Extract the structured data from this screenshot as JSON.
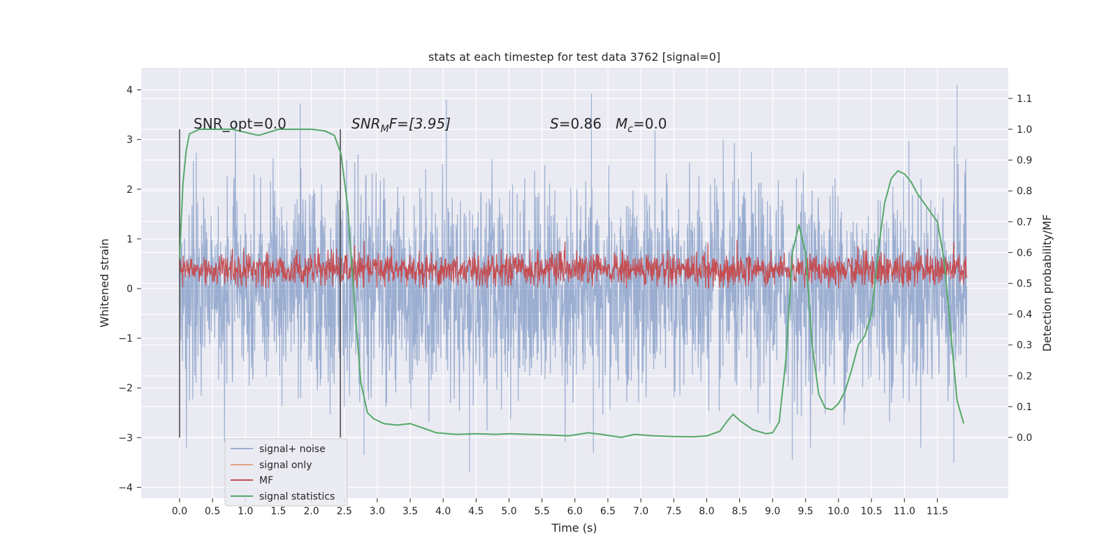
{
  "chart_data": {
    "type": "line",
    "title": "stats at each timestep for test data 3762 [signal=0]",
    "xlabel": "Time (s)",
    "ylabel": "Whitened strain",
    "ylabel_right": "Detection probability/MF",
    "xlim": [
      -0.6,
      12.55
    ],
    "ylim": [
      -4.25,
      4.4
    ],
    "ylim_right": [
      -0.2,
      1.18
    ],
    "x_ticks": [
      "0.0",
      "0.5",
      "1.0",
      "1.5",
      "2.0",
      "2.5",
      "3.0",
      "3.5",
      "4.0",
      "4.5",
      "5.0",
      "5.5",
      "6.0",
      "6.5",
      "7.0",
      "7.5",
      "8.0",
      "8.5",
      "9.0",
      "9.5",
      "10.0",
      "10.5",
      "11.0",
      "11.5"
    ],
    "y_ticks": [
      "4",
      "3",
      "2",
      "1",
      "0",
      "−1",
      "−2",
      "−3",
      "−4"
    ],
    "y_ticks_right": [
      "1.1",
      "1.0",
      "0.9",
      "0.8",
      "0.7",
      "0.6",
      "0.5",
      "0.4",
      "0.3",
      "0.2",
      "0.1",
      "0.0"
    ],
    "grid": true,
    "legend_placement": "lower-left",
    "colors": {
      "signal_noise": "#4c72b0",
      "signal_only": "#dd8452",
      "mf": "#c44e52",
      "signal_statistics": "#55a868",
      "background": "#eaeaf2"
    },
    "annotations": {
      "snr_opt": "SNR_opt=0.0",
      "snr_mf_prefix": "SNR",
      "snr_mf_sub": "M",
      "snr_mf_suffix": "F=[3.95]",
      "s_label": "S",
      "s_value": "=0.86",
      "mc_label": "M",
      "mc_sub": "c",
      "mc_value": "=0.0"
    },
    "vertical_lines_x": [
      0.0,
      2.44
    ],
    "series": [
      {
        "name": "signal+ noise",
        "description_range": [
          -3.7,
          4.1
        ],
        "x_start": 0.0,
        "x_end": 11.95,
        "outliers": [
          [
            1.83,
            3.72
          ],
          [
            4.05,
            3.8
          ],
          [
            6.25,
            3.92
          ],
          [
            11.8,
            4.1
          ],
          [
            4.4,
            -3.68
          ],
          [
            9.3,
            -3.45
          ],
          [
            11.75,
            -3.5
          ],
          [
            2.8,
            -3.35
          ],
          [
            6.28,
            -3.3
          ]
        ]
      },
      {
        "name": "signal only",
        "values": []
      },
      {
        "name": "MF",
        "x_start": 0.0,
        "x_end": 11.95,
        "range": [
          0.0,
          0.98
        ]
      },
      {
        "name": "signal statistics",
        "axis": "right",
        "x": [
          0.0,
          0.05,
          0.1,
          0.15,
          0.3,
          0.5,
          0.8,
          1.0,
          1.2,
          1.35,
          1.5,
          1.8,
          2.0,
          2.2,
          2.35,
          2.45,
          2.55,
          2.65,
          2.75,
          2.85,
          2.95,
          3.1,
          3.3,
          3.5,
          3.7,
          3.9,
          4.2,
          4.5,
          4.8,
          5.0,
          5.3,
          5.6,
          5.9,
          6.2,
          6.4,
          6.7,
          6.9,
          7.2,
          7.5,
          7.8,
          8.0,
          8.2,
          8.3,
          8.4,
          8.5,
          8.7,
          8.9,
          9.0,
          9.1,
          9.2,
          9.3,
          9.4,
          9.5,
          9.6,
          9.7,
          9.8,
          9.9,
          10.0,
          10.1,
          10.2,
          10.3,
          10.4,
          10.5,
          10.6,
          10.7,
          10.8,
          10.9,
          11.0,
          11.1,
          11.2,
          11.3,
          11.4,
          11.5,
          11.6,
          11.7,
          11.8,
          11.9
        ],
        "values": [
          0.58,
          0.82,
          0.93,
          0.985,
          1.0,
          1.0,
          1.0,
          0.99,
          0.98,
          0.99,
          1.0,
          1.0,
          1.0,
          0.995,
          0.98,
          0.92,
          0.75,
          0.45,
          0.18,
          0.08,
          0.06,
          0.045,
          0.04,
          0.045,
          0.03,
          0.015,
          0.01,
          0.012,
          0.01,
          0.012,
          0.01,
          0.008,
          0.005,
          0.015,
          0.01,
          0.0,
          0.01,
          0.005,
          0.003,
          0.002,
          0.005,
          0.02,
          0.05,
          0.075,
          0.055,
          0.025,
          0.012,
          0.015,
          0.05,
          0.25,
          0.6,
          0.69,
          0.6,
          0.3,
          0.14,
          0.095,
          0.09,
          0.11,
          0.15,
          0.22,
          0.3,
          0.33,
          0.4,
          0.6,
          0.76,
          0.84,
          0.865,
          0.855,
          0.83,
          0.79,
          0.76,
          0.73,
          0.7,
          0.58,
          0.35,
          0.12,
          0.045
        ]
      }
    ]
  }
}
